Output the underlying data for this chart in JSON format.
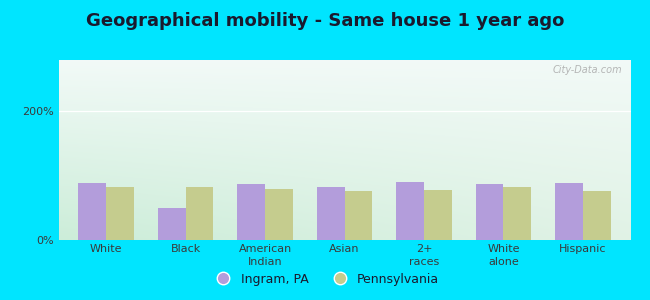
{
  "title": "Geographical mobility - Same house 1 year ago",
  "categories": [
    "White",
    "Black",
    "American\nIndian",
    "Asian",
    "2+\nraces",
    "White\nalone",
    "Hispanic"
  ],
  "ingram_values": [
    88,
    50,
    87,
    83,
    90,
    87,
    88
  ],
  "pennsylvania_values": [
    83,
    83,
    80,
    77,
    78,
    82,
    77
  ],
  "ingram_color": "#b39ddb",
  "pennsylvania_color": "#c5cc8e",
  "background_outer": "#00e5ff",
  "ylabel_ticks": [
    "0%",
    "200%"
  ],
  "ytick_values": [
    0,
    200
  ],
  "ylim_max": 280,
  "legend_ingram": "Ingram, PA",
  "legend_pennsylvania": "Pennsylvania",
  "bar_width": 0.35,
  "title_fontsize": 13,
  "tick_fontsize": 8,
  "legend_fontsize": 9,
  "watermark": "City-Data.com",
  "grad_top": "#e8f5ee",
  "grad_left": "#c8ecd8",
  "grad_right": "#e8eef0"
}
